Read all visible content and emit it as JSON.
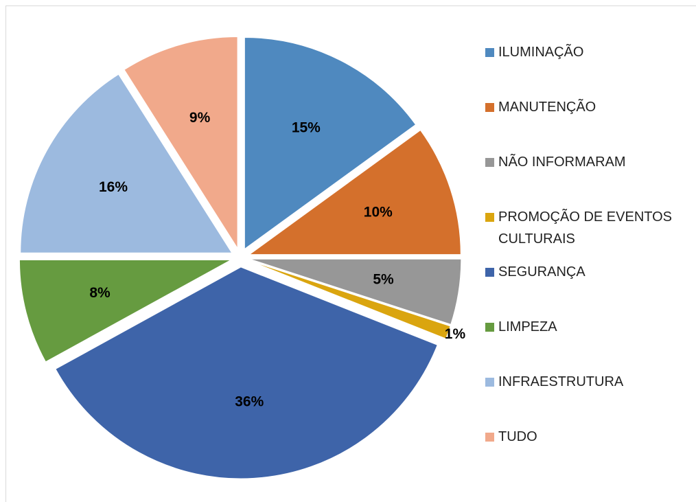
{
  "chart_data": {
    "type": "pie",
    "categories": [
      "ILUMINAÇÃO",
      "MANUTENÇÃO",
      "NÃO INFORMARAM",
      "PROMOÇÃO DE EVENTOS CULTURAIS",
      "SEGURANÇA",
      "LIMPEZA",
      "INFRAESTRUTURA",
      "TUDO"
    ],
    "values": [
      15,
      10,
      5,
      1,
      36,
      8,
      16,
      9
    ],
    "value_labels": [
      "15%",
      "10%",
      "5%",
      "1%",
      "36%",
      "8%",
      "16%",
      "9%"
    ],
    "colors": [
      "#4f89bf",
      "#d4702c",
      "#979797",
      "#daa50f",
      "#3e64a9",
      "#669b40",
      "#9cbadf",
      "#f1a98b"
    ],
    "legend": "right"
  }
}
